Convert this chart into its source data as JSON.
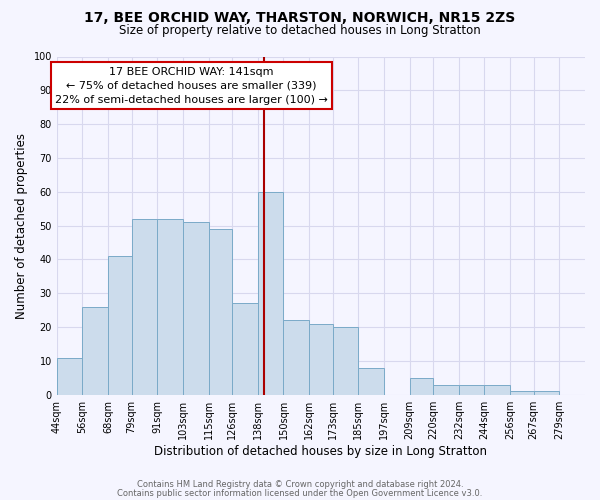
{
  "title": "17, BEE ORCHID WAY, THARSTON, NORWICH, NR15 2ZS",
  "subtitle": "Size of property relative to detached houses in Long Stratton",
  "xlabel": "Distribution of detached houses by size in Long Stratton",
  "ylabel": "Number of detached properties",
  "footer_line1": "Contains HM Land Registry data © Crown copyright and database right 2024.",
  "footer_line2": "Contains public sector information licensed under the Open Government Licence v3.0.",
  "annotation_title": "17 BEE ORCHID WAY: 141sqm",
  "annotation_line2": "← 75% of detached houses are smaller (339)",
  "annotation_line3": "22% of semi-detached houses are larger (100) →",
  "property_size": 141,
  "bar_color": "#ccdcec",
  "bar_edge_color": "#7aaac8",
  "highlight_line_color": "#aa0000",
  "annotation_box_color": "#ffffff",
  "annotation_box_edge": "#cc0000",
  "background_color": "#f5f5ff",
  "grid_color": "#d8d8ee",
  "bin_edges": [
    44,
    56,
    68,
    79,
    91,
    103,
    115,
    126,
    138,
    150,
    162,
    173,
    185,
    197,
    209,
    220,
    232,
    244,
    256,
    267,
    279
  ],
  "bar_heights": [
    11,
    26,
    41,
    52,
    52,
    51,
    49,
    27,
    60,
    22,
    21,
    20,
    8,
    0,
    5,
    3,
    3,
    3,
    1,
    1
  ],
  "ylim": [
    0,
    100
  ],
  "yticks": [
    0,
    10,
    20,
    30,
    40,
    50,
    60,
    70,
    80,
    90,
    100
  ],
  "title_fontsize": 10,
  "subtitle_fontsize": 8.5,
  "ylabel_fontsize": 8.5,
  "xlabel_fontsize": 8.5,
  "tick_fontsize": 7,
  "annotation_fontsize": 8,
  "footer_fontsize": 6
}
